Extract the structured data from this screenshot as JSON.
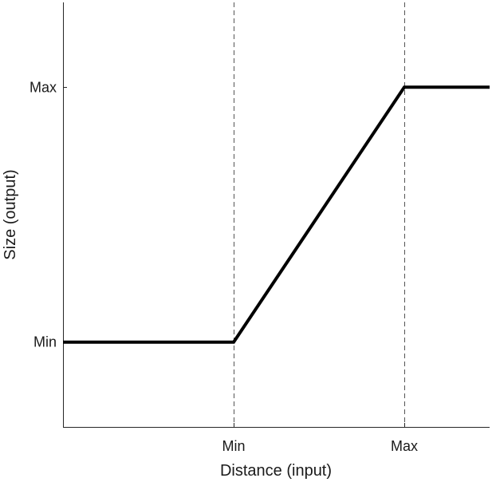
{
  "chart_data": {
    "type": "line",
    "title": "",
    "xlabel": "Distance (input)",
    "ylabel": "Size (output)",
    "xlim": [
      -1,
      1.5
    ],
    "ylim": [
      -0.333,
      1.333
    ],
    "x_ticks": [
      {
        "value": 0,
        "label": "Min"
      },
      {
        "value": 1,
        "label": "Max"
      }
    ],
    "y_ticks": [
      {
        "value": 0,
        "label": "Min"
      },
      {
        "value": 1,
        "label": "Max"
      }
    ],
    "reference_lines": [
      {
        "orientation": "vertical",
        "x": 0,
        "style": "dashed"
      },
      {
        "orientation": "vertical",
        "x": 1,
        "style": "dashed"
      }
    ],
    "series": [
      {
        "x": [
          -1,
          0,
          1,
          1.5
        ],
        "y": [
          0,
          0,
          1,
          1
        ],
        "color": "#000000"
      }
    ],
    "grid": false,
    "legend": "none"
  }
}
